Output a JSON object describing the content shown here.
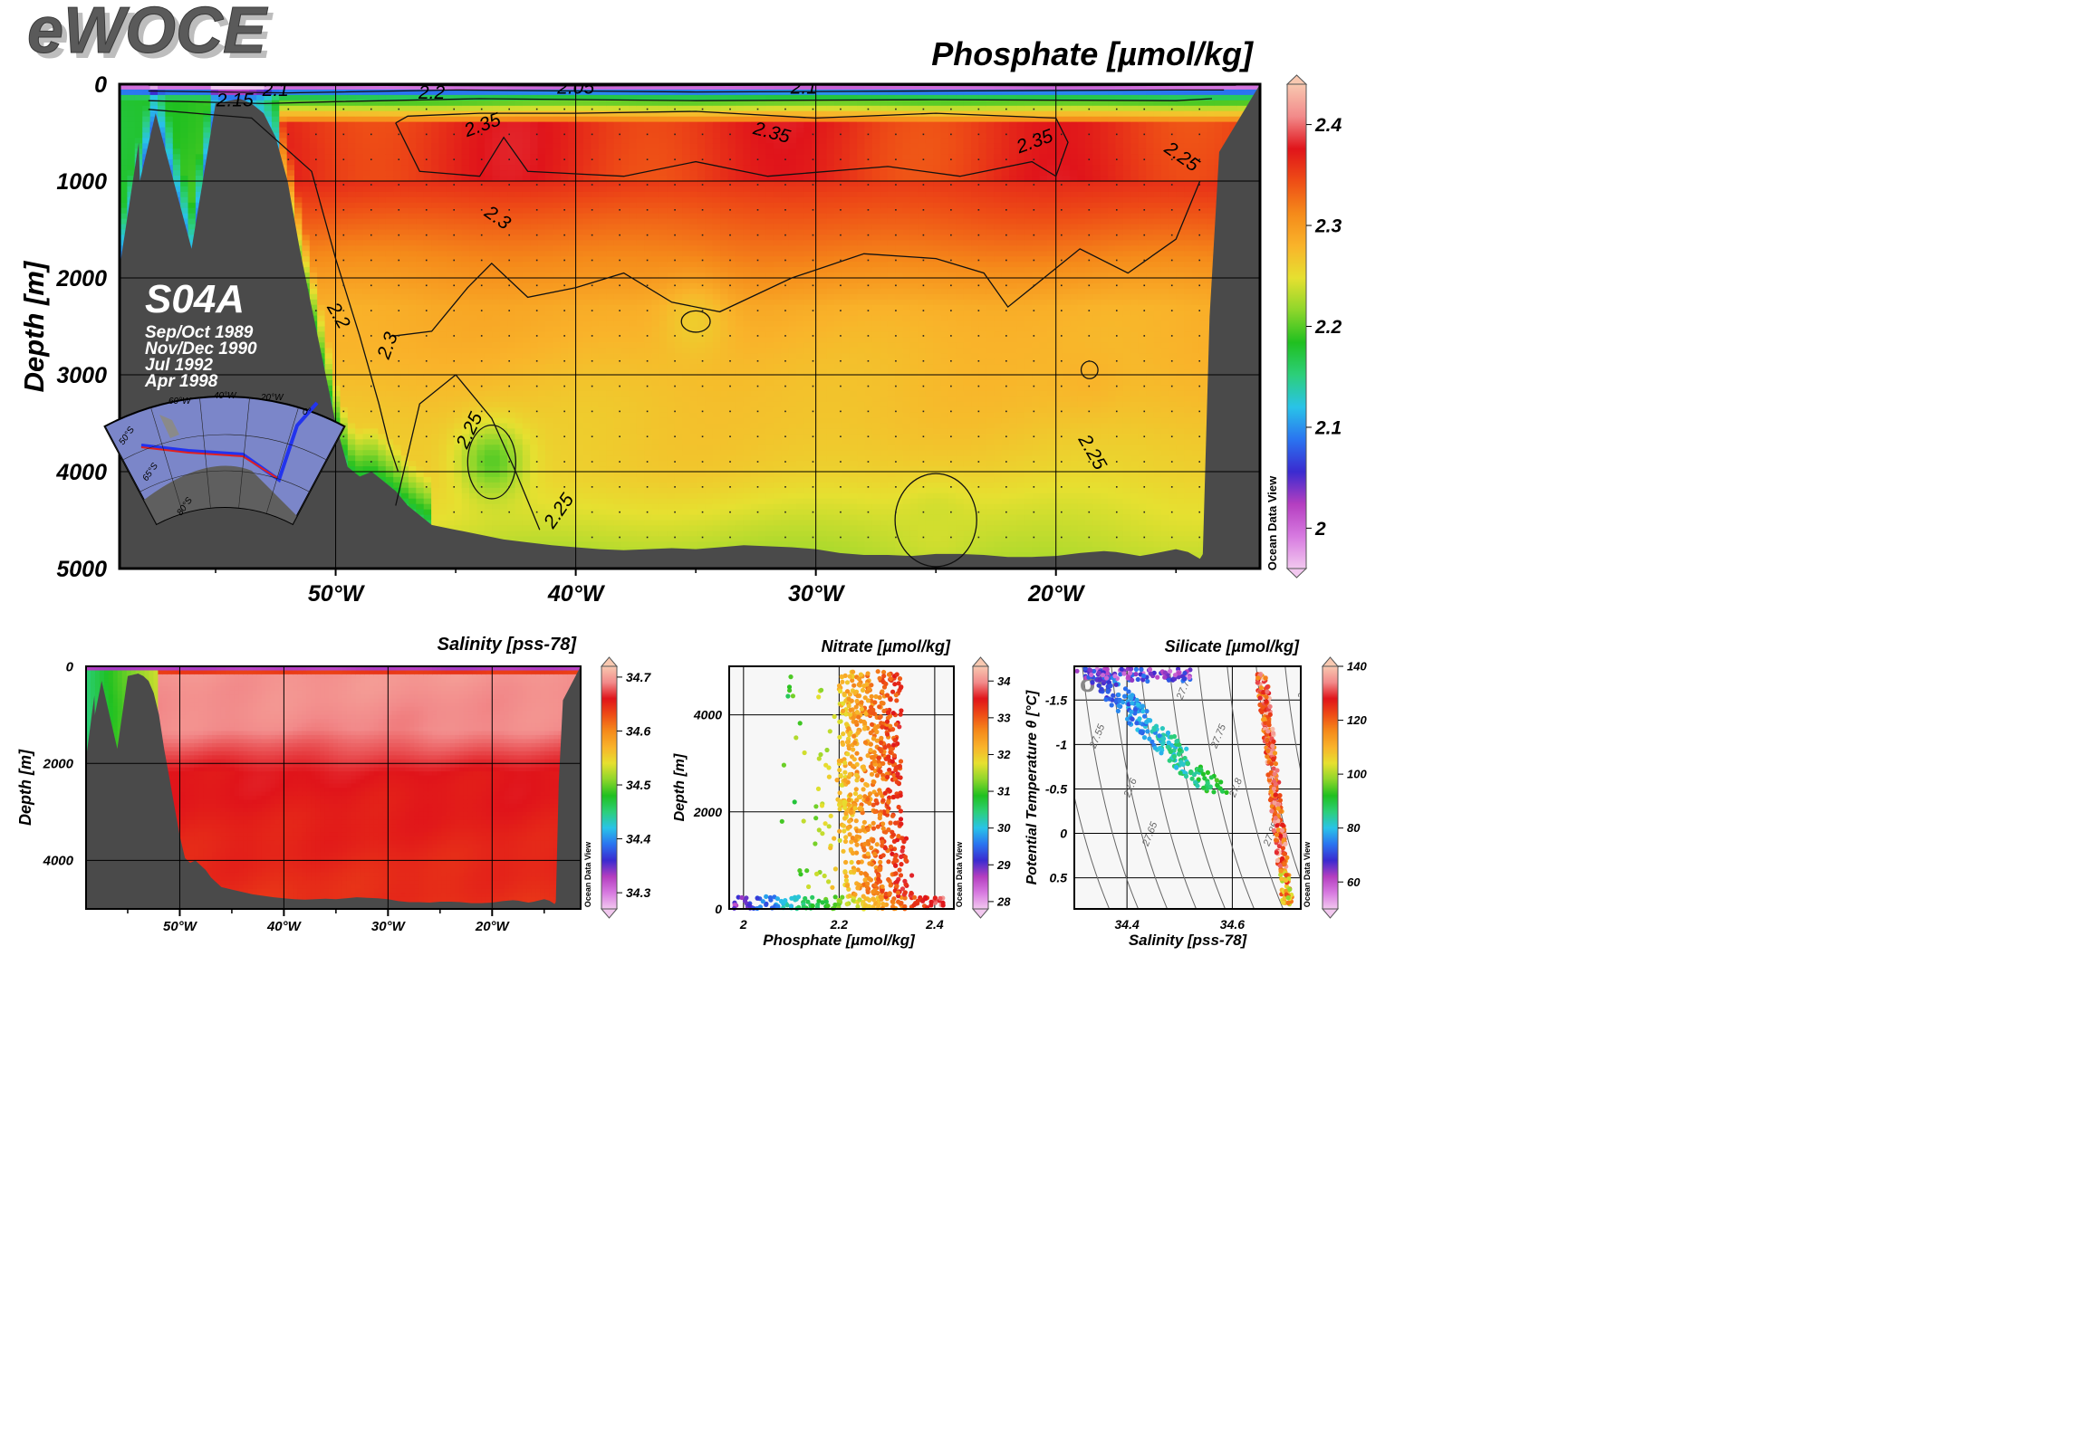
{
  "logo": "eWOCE",
  "watermark": "Ocean Data View",
  "colors": {
    "land": "#4a4a4a",
    "grid": "#000000",
    "contour": "#111111",
    "colormap": [
      "#f2c8ef",
      "#d77ae0",
      "#b43ec0",
      "#3a2bd0",
      "#2a74f0",
      "#29c3e8",
      "#2ccf7a",
      "#20c020",
      "#8ed62b",
      "#e6e030",
      "#f9b32a",
      "#f58a1a",
      "#ee4d16",
      "#e0141a",
      "#f28a8a",
      "#f8c8b0"
    ]
  },
  "main": {
    "title": "Phosphate [µmol/kg]",
    "ylabel": "Depth [m]",
    "section_name": "S04A",
    "cruise_dates": [
      "Sep/Oct 1989",
      "Nov/Dec 1990",
      "Jul 1992",
      "Apr 1998"
    ]
  },
  "inset_map": {
    "lon_labels": [
      "60°W",
      "40°W",
      "20°W",
      "0°"
    ],
    "lat_labels": [
      "50°S",
      "65°S",
      "80°S"
    ]
  },
  "chart_data": [
    {
      "id": "phosphate_section",
      "type": "heatmap",
      "title": "Phosphate [µmol/kg]",
      "xlabel": "",
      "ylabel": "Depth [m]",
      "xlim": [
        -59,
        -11.5
      ],
      "ylim": [
        5000,
        0
      ],
      "xticks": [
        -50,
        -40,
        -30,
        -20
      ],
      "xtick_labels": [
        "50°W",
        "40°W",
        "30°W",
        "20°W"
      ],
      "yticks": [
        0,
        1000,
        2000,
        3000,
        4000,
        5000
      ],
      "ytick_labels": [
        "0",
        "1000",
        "2000",
        "3000",
        "4000",
        "5000"
      ],
      "colorbar": {
        "range": [
          1.96,
          2.44
        ],
        "ticks": [
          2,
          2.1,
          2.2,
          2.3,
          2.4
        ],
        "tick_labels": [
          "2",
          "2.1",
          "2.2",
          "2.3",
          "2.4"
        ]
      },
      "contour_labels": [
        "2.05",
        "2.1",
        "2.15",
        "2.2",
        "2.25",
        "2.3",
        "2.35"
      ],
      "water_profile": {
        "lon": [
          -59,
          -57.5,
          -56,
          -55,
          -54,
          -53.5,
          -53,
          -52.5,
          -52,
          -51.5,
          -51,
          -50.5,
          -50,
          -49.5,
          -49,
          -48.5,
          -48,
          -47.5,
          -47,
          -46,
          -45,
          -44,
          -43,
          -42,
          -41,
          -40,
          -39,
          -38,
          -37,
          -36,
          -35,
          -34,
          -33,
          -32,
          -31,
          -30,
          -29,
          -28,
          -27,
          -26,
          -25,
          -24,
          -23,
          -22,
          -21,
          -20,
          -19,
          -18.5,
          -18,
          -17.5,
          -17,
          -16.5,
          -16,
          -15,
          -14.5,
          -14,
          -13.5,
          -13,
          -12.5,
          -12,
          -11.5
        ],
        "depth": [
          1900,
          300,
          1700,
          200,
          150,
          200,
          300,
          550,
          1000,
          1700,
          2300,
          2900,
          3500,
          3950,
          4050,
          4000,
          4100,
          4200,
          4350,
          4550,
          4600,
          4650,
          4700,
          4730,
          4760,
          4780,
          4800,
          4810,
          4800,
          4790,
          4800,
          4780,
          4760,
          4770,
          4780,
          4800,
          4840,
          4860,
          4860,
          4870,
          4850,
          4850,
          4860,
          4880,
          4880,
          4870,
          4840,
          4830,
          4820,
          4830,
          4850,
          4870,
          4850,
          4800,
          4830,
          4900,
          4700,
          2600,
          2200,
          700,
          0
        ]
      },
      "anomalies": [
        {
          "lon": -35,
          "depth": 2450,
          "value": 2.26
        },
        {
          "lon": -43.5,
          "depth": 3900,
          "value": 2.2
        },
        {
          "lon": -25,
          "depth": 4500,
          "value": 2.24
        },
        {
          "lon": -18.6,
          "depth": 2950,
          "value": 2.28
        }
      ]
    },
    {
      "id": "salinity_section",
      "type": "heatmap",
      "title": "Salinity [pss-78]",
      "xlabel": "",
      "ylabel": "Depth [m]",
      "xlim": [
        -59,
        -11.5
      ],
      "ylim": [
        5000,
        0
      ],
      "xticks": [
        -50,
        -40,
        -30,
        -20
      ],
      "xtick_labels": [
        "50°W",
        "40°W",
        "30°W",
        "20°W"
      ],
      "yticks": [
        0,
        2000,
        4000
      ],
      "ytick_labels": [
        "0",
        "2000",
        "4000"
      ],
      "colorbar": {
        "range": [
          34.27,
          34.72
        ],
        "ticks": [
          34.3,
          34.4,
          34.5,
          34.6,
          34.7
        ],
        "tick_labels": [
          "34.3",
          "34.4",
          "34.5",
          "34.6",
          "34.7"
        ]
      }
    },
    {
      "id": "nitrate_vs_phosphate",
      "type": "scatter",
      "title": "Nitrate [µmol/kg]",
      "xlabel": "Phosphate [µmol/kg]",
      "ylabel": "Depth [m]",
      "xlim": [
        1.97,
        2.44
      ],
      "ylim": [
        5000,
        0
      ],
      "xticks": [
        2,
        2.2,
        2.4
      ],
      "xtick_labels": [
        "2",
        "2.2",
        "2.4"
      ],
      "yticks": [
        0,
        2000,
        4000
      ],
      "ytick_labels": [
        "0",
        "2000",
        "4000"
      ],
      "colorbar": {
        "range": [
          27.8,
          34.4
        ],
        "ticks": [
          28,
          29,
          30,
          31,
          32,
          33,
          34
        ],
        "tick_labels": [
          "28",
          "29",
          "30",
          "31",
          "32",
          "33",
          "34"
        ]
      }
    },
    {
      "id": "theta_s_silicate",
      "type": "scatter",
      "title": "Silicate [µmol/kg]",
      "xlabel": "Salinity [pss-78]",
      "ylabel": "Potential Temperature θ [°C]",
      "xlim": [
        34.3,
        34.73
      ],
      "ylim": [
        -1.88,
        0.85
      ],
      "xticks": [
        34.4,
        34.6
      ],
      "xtick_labels": [
        "34.4",
        "34.6"
      ],
      "yticks": [
        -1.5,
        -1,
        -0.5,
        0,
        0.5
      ],
      "ytick_labels": [
        "-1.5",
        "-1",
        "-0.5",
        "0",
        "0.5"
      ],
      "colorbar": {
        "range": [
          50,
          140
        ],
        "ticks": [
          60,
          80,
          100,
          120,
          140
        ],
        "tick_labels": [
          "60",
          "80",
          "100",
          "120",
          "140"
        ]
      },
      "density_label": "σ0",
      "isopycnals": [
        "27.5",
        "27.55",
        "27.6",
        "27.65",
        "27.7",
        "27.75",
        "27.8",
        "27.85",
        "27.9"
      ]
    }
  ]
}
